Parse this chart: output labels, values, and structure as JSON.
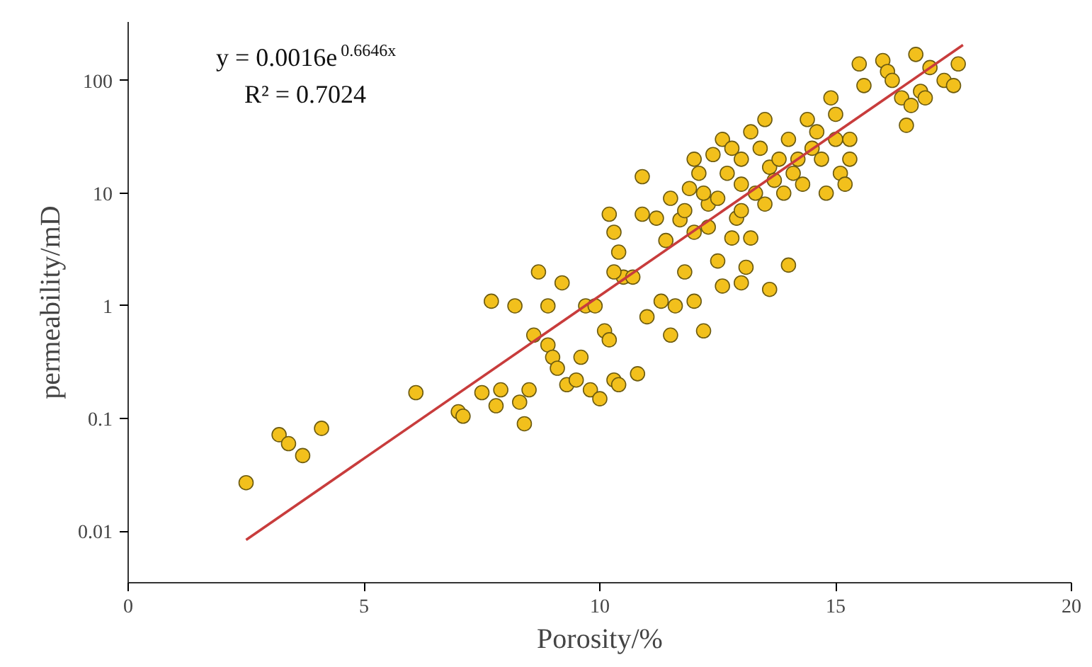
{
  "chart_data": {
    "type": "scatter",
    "xlabel": "Porosity/%",
    "ylabel": "permeability/mD",
    "log": "y",
    "xlim": [
      0,
      20
    ],
    "ylim": [
      0.0035,
      330
    ],
    "xticks": [
      0,
      5,
      10,
      15,
      20
    ],
    "yticks": [
      {
        "value": 0.01,
        "label": "0.01"
      },
      {
        "value": 0.1,
        "label": "0.1"
      },
      1,
      10,
      100
    ],
    "grid": false,
    "marker": "circle",
    "annotations": [
      "y = 0.0016e$^{0.6646x}$",
      "R² = 0.7024"
    ],
    "series": [
      {
        "color": "#f2c01c",
        "x": [
          2.5,
          3.2,
          3.4,
          3.7,
          4.1,
          6.1,
          7.0,
          7.1,
          7.5,
          7.7,
          7.8,
          7.9,
          8.2,
          8.3,
          8.4,
          8.5,
          8.7,
          8.6,
          8.9,
          8.9,
          9.0,
          9.1,
          9.2,
          9.3,
          9.5,
          9.6,
          9.7,
          9.8,
          9.9,
          10.0,
          10.1,
          10.2,
          10.3,
          10.4,
          10.5,
          10.7,
          10.8,
          10.2,
          10.3,
          10.4,
          10.3,
          10.9,
          10.9,
          11.0,
          11.2,
          11.3,
          11.4,
          11.5,
          11.6,
          11.7,
          11.8,
          11.9,
          11.8,
          12.0,
          12.0,
          12.0,
          12.1,
          12.2,
          12.3,
          12.3,
          12.4,
          12.5,
          12.6,
          12.5,
          12.6,
          12.7,
          12.8,
          12.8,
          12.9,
          13.0,
          13.0,
          13.0,
          13.1,
          13.2,
          13.2,
          13.3,
          13.4,
          13.5,
          13.5,
          13.6,
          13.6,
          13.7,
          13.8,
          13.9,
          14.0,
          14.0,
          14.1,
          14.2,
          14.3,
          14.4,
          14.5,
          14.6,
          14.7,
          14.8,
          15.0,
          15.0,
          15.1,
          15.2,
          15.3,
          15.5,
          15.6,
          16.0,
          16.1,
          16.2,
          16.4,
          16.5,
          16.6,
          16.7,
          16.8,
          16.9,
          17.0,
          17.3,
          17.5,
          17.6,
          13.0,
          12.2,
          11.5,
          14.9,
          15.3
        ],
        "values": [
          0.027,
          0.072,
          0.06,
          0.047,
          0.082,
          0.17,
          0.115,
          0.105,
          0.17,
          1.1,
          0.13,
          0.18,
          1.0,
          0.14,
          0.09,
          0.18,
          2.0,
          0.55,
          0.45,
          1.0,
          0.35,
          0.28,
          1.6,
          0.2,
          0.22,
          0.35,
          1.0,
          0.18,
          1.0,
          0.15,
          0.6,
          0.5,
          0.22,
          0.2,
          1.8,
          1.8,
          0.25,
          6.5,
          4.5,
          3.0,
          2.0,
          14,
          6.5,
          0.8,
          6,
          1.1,
          3.8,
          0.55,
          1.0,
          5.8,
          7,
          11,
          2.0,
          4.5,
          1.1,
          20,
          15,
          0.6,
          8,
          5,
          22,
          9,
          30,
          2.5,
          1.5,
          15,
          25,
          4,
          6,
          12,
          20,
          1.6,
          2.2,
          35,
          4,
          10,
          25,
          8,
          45,
          1.4,
          17,
          13,
          20,
          10,
          30,
          2.3,
          15,
          20,
          12,
          45,
          25,
          35,
          20,
          10,
          50,
          30,
          15,
          12,
          30,
          140,
          90,
          150,
          120,
          100,
          70,
          40,
          60,
          170,
          80,
          70,
          130,
          100,
          90,
          140,
          7,
          10,
          9,
          70,
          20
        ]
      },
      {
        "type": "line",
        "color": "#c83c3c",
        "marker": "none",
        "line_style": "solid",
        "x": [
          2.5,
          17.7
        ],
        "values": [
          0.0084,
          206
        ]
      }
    ]
  }
}
